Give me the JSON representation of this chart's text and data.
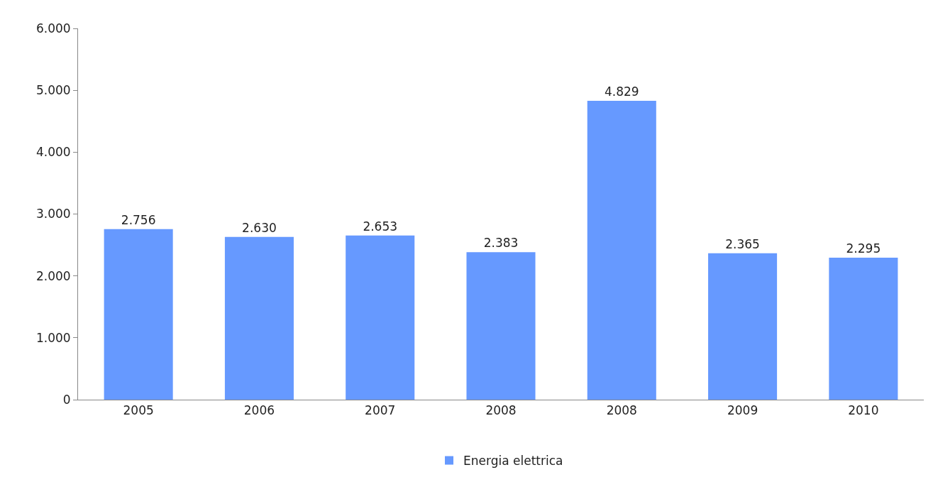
{
  "chart_data": {
    "type": "bar",
    "categories": [
      "2005",
      "2006",
      "2007",
      "2008",
      "2008",
      "2009",
      "2010"
    ],
    "series": [
      {
        "name": "Energia elettrica",
        "color": "#6699ff",
        "values": [
          2756,
          2630,
          2653,
          2383,
          4829,
          2365,
          2295
        ],
        "value_labels": [
          "2.756",
          "2.630",
          "2.653",
          "2.383",
          "4.829",
          "2.365",
          "2.295"
        ]
      }
    ],
    "ylim": [
      0,
      6000
    ],
    "yticks": [
      {
        "value": 0,
        "label": "0"
      },
      {
        "value": 1000,
        "label": "1.000"
      },
      {
        "value": 2000,
        "label": "2.000"
      },
      {
        "value": 3000,
        "label": "3.000"
      },
      {
        "value": 4000,
        "label": "4.000"
      },
      {
        "value": 5000,
        "label": "5.000"
      },
      {
        "value": 6000,
        "label": "6.000"
      }
    ],
    "legend": "bottom"
  }
}
